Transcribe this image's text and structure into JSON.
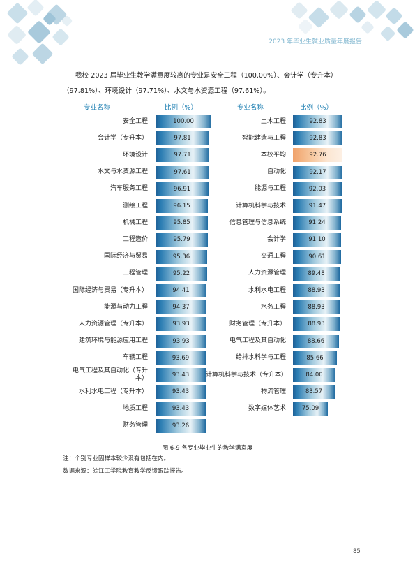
{
  "header": {
    "title": "2023 年毕业生就业质量年度报告"
  },
  "intro": "我校 2023 届毕业生教学满意度较高的专业是安全工程（100.00%）、会计学（专升本）（97.81%）、环境设计（97.71%）、水文与水资源工程（97.61%）。",
  "chart_data": {
    "type": "bar",
    "orientation": "horizontal",
    "column_headers": {
      "major": "专业名称",
      "ratio": "比例（%）"
    },
    "xlim": [
      0,
      100
    ],
    "highlight_category": "本校平均",
    "highlight_color": "#f4b07e",
    "bar_color": "#2a7cb2",
    "columns": [
      {
        "categories": [
          "安全工程",
          "会计学（专升本）",
          "环境设计",
          "水文与水资源工程",
          "汽车服务工程",
          "测绘工程",
          "机械工程",
          "工程造价",
          "国际经济与贸易",
          "工程管理",
          "国际经济与贸易（专升本）",
          "能源与动力工程",
          "人力资源管理（专升本）",
          "建筑环境与能源应用工程",
          "车辆工程",
          "电气工程及其自动化（专升本）",
          "水利水电工程（专升本）",
          "地质工程",
          "财务管理"
        ],
        "values": [
          "100.00",
          "97.81",
          "97.71",
          "97.61",
          "96.91",
          "96.15",
          "95.85",
          "95.79",
          "95.36",
          "95.22",
          "94.41",
          "94.37",
          "93.93",
          "93.93",
          "93.69",
          "93.43",
          "93.43",
          "93.43",
          "93.26"
        ]
      },
      {
        "categories": [
          "土木工程",
          "智能建造与工程",
          "本校平均",
          "自动化",
          "能源与工程",
          "计算机科学与技术",
          "信息管理与信息系统",
          "会计学",
          "交通工程",
          "人力资源管理",
          "水利水电工程",
          "水务工程",
          "财务管理（专升本）",
          "电气工程及其自动化",
          "给排水科学与工程",
          "计算机科学与技术（专升本）",
          "物流管理",
          "数字媒体艺术"
        ],
        "values": [
          "92.83",
          "92.83",
          "92.76",
          "92.17",
          "92.03",
          "91.47",
          "91.24",
          "91.10",
          "90.61",
          "89.48",
          "88.93",
          "88.93",
          "88.93",
          "88.66",
          "85.66",
          "84.00",
          "83.57",
          "75.09"
        ]
      }
    ]
  },
  "caption": "图 6-9     各专业毕业生的教学满意度",
  "notes": [
    "注：个别专业因样本较少没有包括在内。",
    "数据来源：皖江工学院教育教学反馈跟踪报告。"
  ],
  "page_number": "85"
}
